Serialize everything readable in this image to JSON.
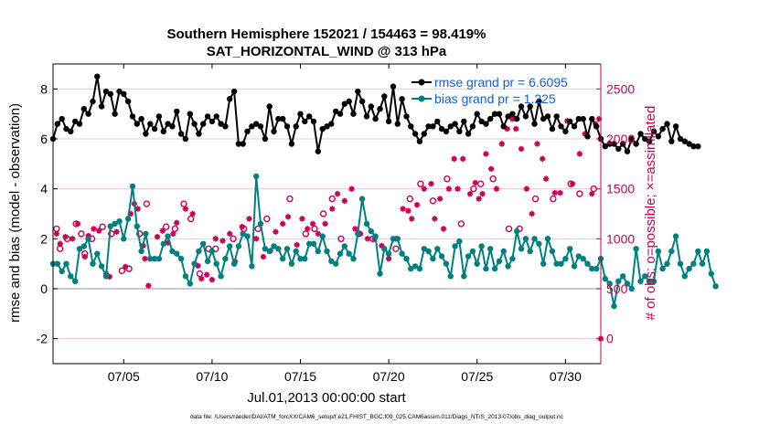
{
  "chart_data": {
    "type": "line",
    "title_line1": "Southern Hemisphere 152021 / 154463 = 98.419%",
    "title_line2": "SAT_HORIZONTAL_WIND @ 313 hPa",
    "xlabel": "Jul.01,2013 00:00:00 start",
    "ylabel_left": "rmse and bias (model - observation)",
    "ylabel_right": "# of obs: o=possible; ×=assimilated",
    "x_ticks": [
      {
        "day": 5,
        "label": "07/05"
      },
      {
        "day": 10,
        "label": "07/10"
      },
      {
        "day": 15,
        "label": "07/15"
      },
      {
        "day": 20,
        "label": "07/20"
      },
      {
        "day": 25,
        "label": "07/25"
      },
      {
        "day": 30,
        "label": "07/30"
      }
    ],
    "xlim": [
      1,
      32
    ],
    "ylim_left": [
      -3,
      9
    ],
    "yticks_left": [
      "-2",
      "0",
      "2",
      "4",
      "6",
      "8"
    ],
    "ylim_right": [
      -250,
      2750
    ],
    "yticks_right": [
      "0",
      "500",
      "1000",
      "1500",
      "2000",
      "2500"
    ],
    "legend": {
      "placement": "top-right",
      "entries": [
        "rmse grand pr = 6.6095",
        "bias grand pr = 1.225"
      ]
    },
    "series": [
      {
        "name": "rmse",
        "color": "#000000",
        "x_start": 1.0,
        "x_step": 0.25,
        "values": [
          6.0,
          6.6,
          6.8,
          6.4,
          6.3,
          6.7,
          6.6,
          7.2,
          7.0,
          7.5,
          8.5,
          7.3,
          7.9,
          7.8,
          7.0,
          7.9,
          7.8,
          7.5,
          6.9,
          6.6,
          6.8,
          6.2,
          6.6,
          6.4,
          6.9,
          6.3,
          6.6,
          6.5,
          7.1,
          6.2,
          6.0,
          7.0,
          6.6,
          6.2,
          6.6,
          6.9,
          6.7,
          6.9,
          6.6,
          6.5,
          7.6,
          7.9,
          5.8,
          5.8,
          6.3,
          6.5,
          6.6,
          6.5,
          6.0,
          7.3,
          6.3,
          6.8,
          6.8,
          6.5,
          5.8,
          6.5,
          7.0,
          6.7,
          6.9,
          6.7,
          5.5,
          6.4,
          6.5,
          6.6,
          7.1,
          7.0,
          7.4,
          7.5,
          7.0,
          7.9,
          7.5,
          6.9,
          7.3,
          6.8,
          7.2,
          7.7,
          6.7,
          8.1,
          6.6,
          7.6,
          6.9,
          6.5,
          6.2,
          5.9,
          6.2,
          6.5,
          6.5,
          6.7,
          6.4,
          6.3,
          6.5,
          6.6,
          6.3,
          6.7,
          6.2,
          6.5,
          7.0,
          6.7,
          6.6,
          6.8,
          7.0,
          7.0,
          6.5,
          6.9,
          7.0,
          6.8,
          7.3,
          6.9,
          7.3,
          6.6,
          7.5,
          6.8,
          6.9,
          6.4,
          6.9,
          6.5,
          6.3,
          6.7,
          6.5,
          6.8,
          6.8,
          6.1,
          6.8,
          6.5,
          6.0,
          5.7,
          5.8,
          5.8,
          5.6,
          5.8,
          5.5,
          6.0,
          5.8,
          6.2,
          6.0,
          5.9,
          6.3,
          6.1,
          6.4,
          6.6,
          5.9,
          6.5,
          6.0,
          5.9,
          5.8,
          5.7,
          5.7
        ]
      },
      {
        "name": "bias",
        "color": "#008080",
        "x_start": 1.0,
        "x_step": 0.25,
        "values": [
          1.0,
          1.0,
          0.7,
          1.0,
          0.5,
          0.3,
          1.6,
          1.7,
          2.0,
          1.0,
          1.4,
          0.9,
          0.5,
          2.5,
          2.6,
          2.7,
          2.0,
          2.8,
          4.1,
          2.5,
          1.5,
          2.2,
          1.2,
          1.2,
          1.2,
          1.8,
          2.1,
          1.5,
          1.4,
          1.2,
          0.5,
          0.2,
          1.0,
          1.5,
          1.8,
          1.1,
          1.5,
          1.0,
          0.5,
          1.2,
          1.7,
          1.0,
          1.7,
          2.2,
          2.1,
          0.9,
          4.5,
          2.6,
          1.6,
          1.5,
          1.7,
          1.6,
          1.2,
          1.6,
          1.0,
          1.5,
          1.2,
          1.2,
          1.8,
          1.8,
          1.5,
          2.1,
          1.5,
          1.1,
          1.0,
          1.4,
          1.7,
          1.4,
          1.2,
          2.2,
          3.6,
          2.6,
          2.3,
          2.1,
          0.6,
          1.6,
          1.4,
          2.0,
          2.0,
          1.4,
          1.2,
          0.8,
          0.9,
          0.8,
          1.6,
          1.5,
          1.2,
          1.6,
          1.3,
          1.0,
          0.5,
          1.7,
          1.9,
          0.5,
          1.3,
          1.5,
          1.0,
          1.7,
          0.8,
          1.6,
          0.8,
          1.1,
          1.5,
          0.9,
          1.2,
          2.3,
          1.6,
          2.0,
          1.5,
          2.0,
          1.8,
          1.0,
          2.0,
          1.5,
          1.0,
          1.0,
          1.2,
          1.6,
          0.9,
          1.3,
          1.2,
          1.0,
          0.8,
          0.8,
          1.2,
          0.4,
          0.2,
          -0.7,
          0.3,
          0.5,
          0.2,
          0.0,
          1.6,
          0.3,
          0.5,
          0.3,
          0.3,
          1.5,
          0.8,
          1.0,
          1.5,
          2.1,
          1.0,
          0.5,
          0.8,
          1.0,
          1.5,
          1.0,
          1.5,
          0.6,
          0.1
        ]
      }
    ],
    "obs_possible": [
      [
        1.2,
        1100
      ],
      [
        1.4,
        900
      ],
      [
        1.8,
        1000
      ],
      [
        2.3,
        1150
      ],
      [
        2.6,
        1050
      ],
      [
        2.8,
        850
      ],
      [
        3.2,
        1000
      ],
      [
        3.8,
        1120
      ],
      [
        4.3,
        1050
      ],
      [
        4.9,
        680
      ],
      [
        5.3,
        700
      ],
      [
        5.9,
        1050
      ],
      [
        6.3,
        1350
      ],
      [
        7.4,
        1120
      ],
      [
        7.9,
        1100
      ],
      [
        8.4,
        1350
      ],
      [
        8.8,
        1200
      ],
      [
        9.3,
        650
      ],
      [
        9.8,
        900
      ],
      [
        10.2,
        900
      ],
      [
        11.2,
        1000
      ],
      [
        11.8,
        1100
      ],
      [
        12.6,
        1100
      ],
      [
        13.1,
        1200
      ],
      [
        14.4,
        1400
      ],
      [
        15.3,
        1050
      ],
      [
        15.8,
        1100
      ],
      [
        16.3,
        1250
      ],
      [
        16.8,
        1400
      ],
      [
        17.3,
        1000
      ],
      [
        18.3,
        1050
      ],
      [
        19.1,
        1000
      ],
      [
        20.4,
        900
      ],
      [
        21.2,
        1400
      ],
      [
        21.8,
        1550
      ],
      [
        22.5,
        1380
      ],
      [
        23.3,
        1600
      ],
      [
        24.1,
        1150
      ],
      [
        24.8,
        1500
      ],
      [
        25.2,
        1550
      ],
      [
        25.9,
        1600
      ],
      [
        26.8,
        1100
      ],
      [
        27.4,
        1100
      ],
      [
        28.3,
        1400
      ],
      [
        29.3,
        1400
      ],
      [
        30.3,
        1550
      ],
      [
        30.8,
        1450
      ],
      [
        31.6,
        1500
      ]
    ],
    "obs_assimilated": [
      [
        1.2,
        1050
      ],
      [
        1.4,
        950
      ],
      [
        1.7,
        1020
      ],
      [
        2.1,
        1000
      ],
      [
        2.4,
        1150
      ],
      [
        2.8,
        820
      ],
      [
        3.0,
        1030
      ],
      [
        3.3,
        1100
      ],
      [
        3.6,
        1080
      ],
      [
        4.0,
        650
      ],
      [
        4.2,
        620
      ],
      [
        4.6,
        1070
      ],
      [
        5.1,
        720
      ],
      [
        5.4,
        1250
      ],
      [
        5.6,
        1350
      ],
      [
        5.8,
        1300
      ],
      [
        6.1,
        930
      ],
      [
        6.2,
        800
      ],
      [
        6.4,
        530
      ],
      [
        6.9,
        1020
      ],
      [
        7.2,
        1080
      ],
      [
        7.5,
        960
      ],
      [
        7.8,
        1050
      ],
      [
        8.0,
        1160
      ],
      [
        8.5,
        1300
      ],
      [
        8.9,
        1250
      ],
      [
        9.2,
        730
      ],
      [
        9.4,
        600
      ],
      [
        9.7,
        640
      ],
      [
        10.0,
        590
      ],
      [
        10.2,
        1000
      ],
      [
        10.6,
        980
      ],
      [
        11.0,
        1050
      ],
      [
        11.3,
        770
      ],
      [
        11.7,
        1120
      ],
      [
        12.1,
        1200
      ],
      [
        12.5,
        1000
      ],
      [
        12.9,
        820
      ],
      [
        13.3,
        880
      ],
      [
        13.6,
        1070
      ],
      [
        14.0,
        1150
      ],
      [
        14.3,
        1220
      ],
      [
        14.8,
        940
      ],
      [
        15.1,
        1200
      ],
      [
        15.4,
        1100
      ],
      [
        15.7,
        1150
      ],
      [
        16.0,
        1050
      ],
      [
        16.4,
        1150
      ],
      [
        16.8,
        1300
      ],
      [
        17.1,
        1450
      ],
      [
        17.5,
        1380
      ],
      [
        17.9,
        1500
      ],
      [
        18.1,
        1100
      ],
      [
        18.4,
        1050
      ],
      [
        18.8,
        1000
      ],
      [
        19.2,
        1000
      ],
      [
        19.6,
        930
      ],
      [
        20.0,
        800
      ],
      [
        20.4,
        1000
      ],
      [
        20.8,
        1300
      ],
      [
        21.1,
        1280
      ],
      [
        21.3,
        1200
      ],
      [
        21.6,
        1340
      ],
      [
        22.0,
        1500
      ],
      [
        22.4,
        1550
      ],
      [
        22.6,
        1200
      ],
      [
        22.9,
        1400
      ],
      [
        23.1,
        1100
      ],
      [
        23.4,
        1500
      ],
      [
        23.7,
        1800
      ],
      [
        23.9,
        1500
      ],
      [
        24.2,
        1800
      ],
      [
        24.6,
        1450
      ],
      [
        24.9,
        1560
      ],
      [
        25.1,
        1400
      ],
      [
        25.3,
        1450
      ],
      [
        25.5,
        1850
      ],
      [
        25.8,
        1700
      ],
      [
        26.1,
        1500
      ],
      [
        26.4,
        1950
      ],
      [
        26.7,
        2100
      ],
      [
        27.0,
        2200
      ],
      [
        27.2,
        2100
      ],
      [
        27.5,
        1900
      ],
      [
        27.8,
        1500
      ],
      [
        28.1,
        1250
      ],
      [
        28.4,
        1950
      ],
      [
        28.7,
        1800
      ],
      [
        28.9,
        1600
      ],
      [
        29.4,
        1460
      ],
      [
        29.7,
        1460
      ],
      [
        30.1,
        2180
      ],
      [
        30.4,
        1550
      ],
      [
        30.8,
        1850
      ],
      [
        31.1,
        2050
      ],
      [
        31.5,
        1450
      ],
      [
        31.7,
        2150
      ],
      [
        31.9,
        2200
      ],
      [
        32.0,
        0
      ]
    ],
    "footer": "data file: /Users/raeder/DAI/ATM_forcXX/CAM6_setup/f.e21.FHIST_BGC.f09_025.CAM6assim.011/Diags_NTrS_2013-07/obs_diag_output.nc",
    "colors": {
      "rmse": "#000000",
      "bias": "#008080",
      "obs": "#cc0055",
      "right_axis": "#cc0055"
    }
  }
}
